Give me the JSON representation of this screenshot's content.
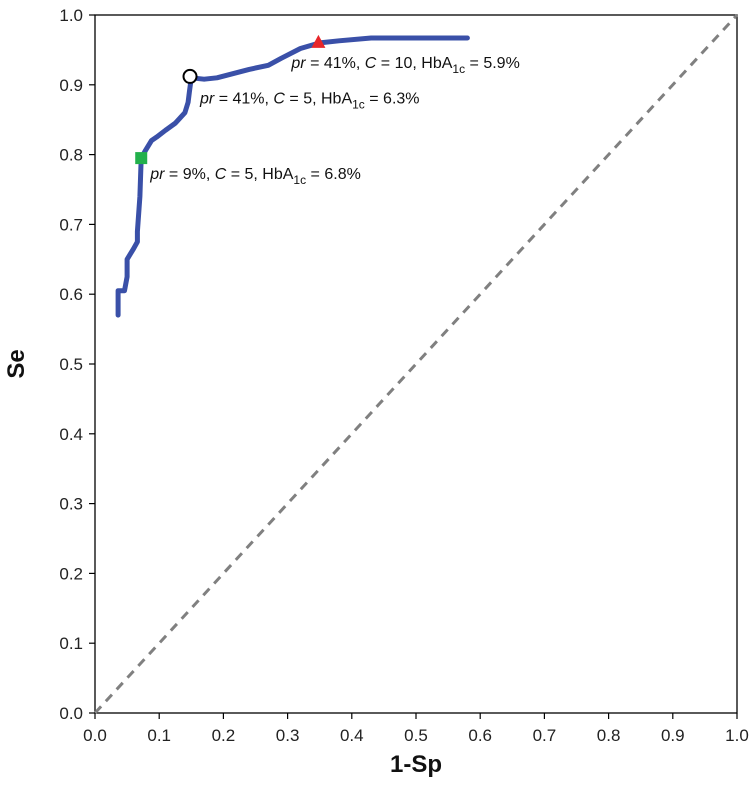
{
  "chart_data": {
    "type": "line",
    "title": "",
    "xlabel": "1-Sp",
    "ylabel": "Se",
    "xlim": [
      0,
      1
    ],
    "ylim": [
      0,
      1
    ],
    "xticks": [
      "0.0",
      "0.1",
      "0.2",
      "0.3",
      "0.4",
      "0.5",
      "0.6",
      "0.7",
      "0.8",
      "0.9",
      "1.0"
    ],
    "yticks": [
      "0.0",
      "0.1",
      "0.2",
      "0.3",
      "0.4",
      "0.5",
      "0.6",
      "0.7",
      "0.8",
      "0.9",
      "1.0"
    ],
    "grid": false,
    "colors": {
      "curve": "#3a50a8",
      "diagonal": "#808080",
      "square": "#22b04b",
      "triangle": "#e8262a",
      "circle": "#ffffff"
    },
    "series": [
      {
        "name": "ROC",
        "x": [
          0.036,
          0.036,
          0.046,
          0.046,
          0.05,
          0.05,
          0.06,
          0.066,
          0.066,
          0.07,
          0.072,
          0.078,
          0.088,
          0.096,
          0.11,
          0.125,
          0.14,
          0.145,
          0.147,
          0.15,
          0.17,
          0.19,
          0.24,
          0.27,
          0.29,
          0.32,
          0.35,
          0.38,
          0.43,
          0.5,
          0.58
        ],
        "y": [
          0.57,
          0.605,
          0.605,
          0.605,
          0.625,
          0.65,
          0.665,
          0.675,
          0.69,
          0.74,
          0.795,
          0.805,
          0.82,
          0.825,
          0.835,
          0.845,
          0.86,
          0.875,
          0.89,
          0.91,
          0.908,
          0.91,
          0.922,
          0.928,
          0.938,
          0.952,
          0.96,
          0.963,
          0.967,
          0.967,
          0.967
        ]
      },
      {
        "name": "reference",
        "x": [
          0,
          1
        ],
        "y": [
          0,
          1
        ]
      }
    ],
    "markers": [
      {
        "name": "green-square-marker",
        "shape": "square",
        "x": 0.072,
        "y": 0.795,
        "label_parts": [
          "pr",
          " = 9%, ",
          "C",
          " = 5, HbA",
          "1c",
          " = 6.8%"
        ]
      },
      {
        "name": "white-circle-marker",
        "shape": "circle",
        "x": 0.148,
        "y": 0.912,
        "label_parts": [
          "pr",
          " = 41%, ",
          "C",
          " = 5, HbA",
          "1c",
          " = 6.3%"
        ]
      },
      {
        "name": "red-triangle-marker",
        "shape": "triangle",
        "x": 0.348,
        "y": 0.96,
        "label_parts": [
          "pr",
          " = 41%, ",
          "C",
          " = 10, HbA",
          "1c",
          " = 5.9%"
        ]
      }
    ]
  }
}
